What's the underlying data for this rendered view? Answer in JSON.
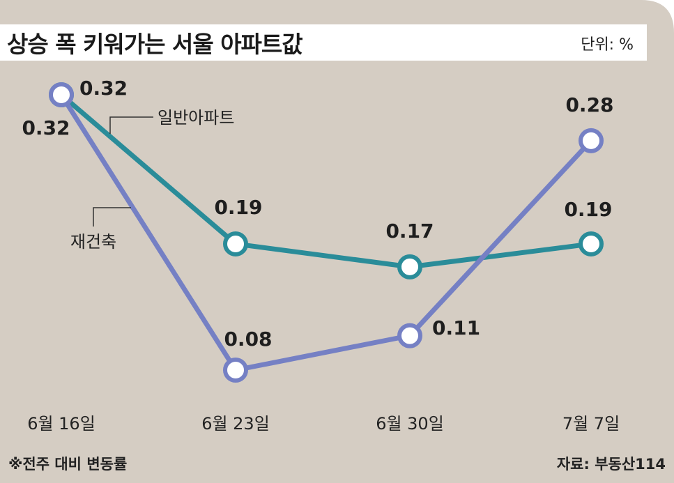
{
  "header": {
    "title": "상승 폭 키워가는 서울 아파트값",
    "unit": "단위: %"
  },
  "footer": {
    "note": "※전주 대비 변동률",
    "source": "자료: 부동산114"
  },
  "colors": {
    "background": "#d5cdc3",
    "general": "#2a8c99",
    "reconstruction": "#7580c4"
  },
  "chart_data": {
    "type": "line",
    "categories": [
      "6월 16일",
      "6월 23일",
      "6월 30일",
      "7월  7일"
    ],
    "series": [
      {
        "name": "일반아파트",
        "values": [
          0.32,
          0.19,
          0.17,
          0.19
        ]
      },
      {
        "name": "재건축",
        "values": [
          0.32,
          0.08,
          0.11,
          0.28
        ]
      }
    ],
    "data_labels": {
      "일반아파트": [
        "0.32",
        "0.19",
        "0.17",
        "0.19"
      ],
      "재건축": [
        "0.32",
        "0.08",
        "0.11",
        "0.28"
      ]
    },
    "ylim": [
      0.06,
      0.34
    ],
    "grid": false,
    "legend": "inline callout labels"
  }
}
